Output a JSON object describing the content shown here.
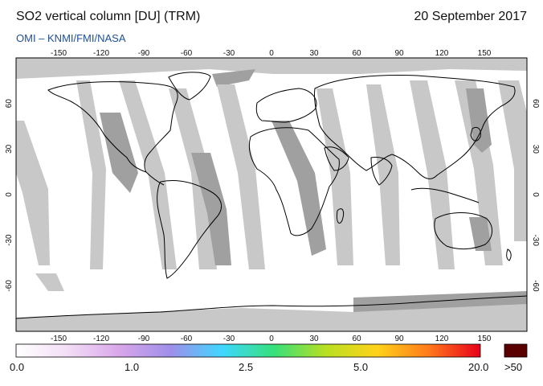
{
  "header": {
    "title": "SO2 vertical column [DU] (TRM)",
    "date": "20 September 2017",
    "source": "OMI  –  KNMI/FMI/NASA"
  },
  "axes": {
    "lon_top": [
      "-150",
      "-120",
      "-90",
      "-60",
      "-30",
      "0",
      "30",
      "60",
      "90",
      "120",
      "150"
    ],
    "lon_bottom": [
      "-150",
      "-120",
      "-90",
      "-60",
      "-30",
      "0",
      "30",
      "60",
      "90",
      "120",
      "150"
    ],
    "lat_left": [
      "60",
      "30",
      "0",
      "-30",
      "-60"
    ],
    "lat_right": [
      "60",
      "30",
      "0",
      "-30",
      "-60"
    ]
  },
  "colorbar": {
    "labels": [
      "0.0",
      "1.0",
      "2.5",
      "5.0",
      "20.0"
    ],
    "overflow_label": ">50",
    "overflow_color": "#5a0000",
    "gradient": [
      "#ffffff",
      "#f3ddf6",
      "#d9a6ea",
      "#9e8fea",
      "#3fd7ff",
      "#35e07a",
      "#b8e021",
      "#ffd21a",
      "#ff7a1a",
      "#e8001a"
    ]
  },
  "colors": {
    "missing_swath": "#c8c8c8",
    "dark_swath": "#a0a0a0",
    "coastline": "#000000",
    "subtitle": "#1f4f98"
  }
}
